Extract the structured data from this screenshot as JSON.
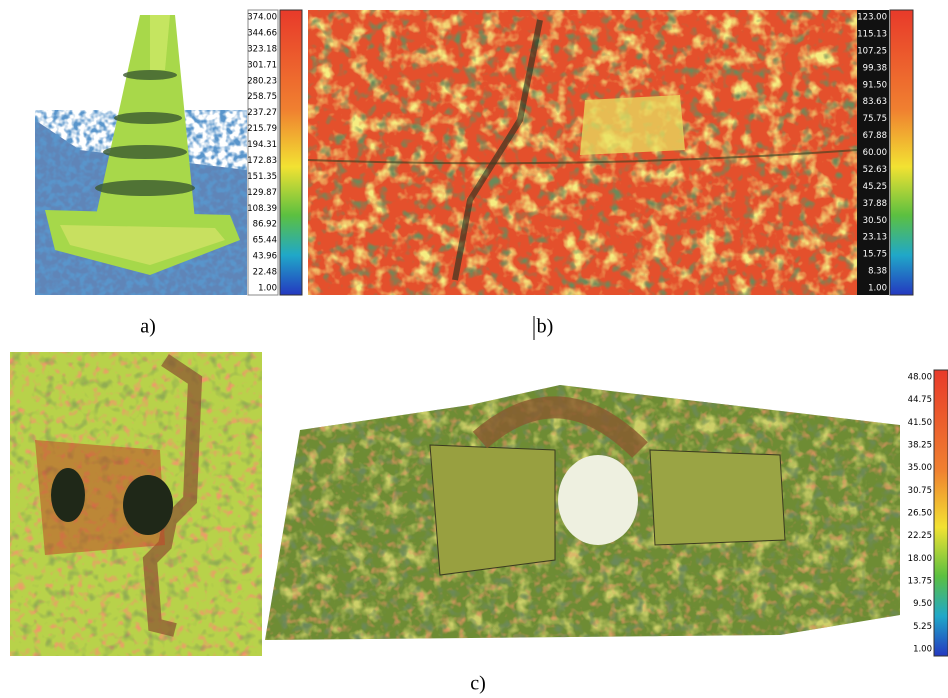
{
  "panels": [
    {
      "label": "a)",
      "colorbar": [
        "374.00",
        "344.66",
        "323.18",
        "301.71",
        "280.23",
        "258.75",
        "237.27",
        "215.79",
        "194.31",
        "172.83",
        "151.35",
        "129.87",
        "108.39",
        "86.92",
        "65.44",
        "43.96",
        "22.48",
        "1.00"
      ]
    },
    {
      "label": "b)",
      "colorbar": [
        "123.00",
        "115.13",
        "107.25",
        "99.38",
        "91.50",
        "83.63",
        "75.75",
        "67.88",
        "60.00",
        "52.63",
        "45.25",
        "37.88",
        "30.50",
        "23.13",
        "15.75",
        "8.38",
        "1.00"
      ]
    },
    {
      "label": "c)",
      "colorbar": [
        "48.00",
        "44.75",
        "41.50",
        "38.25",
        "35.00",
        "30.75",
        "26.50",
        "22.25",
        "18.00",
        "13.75",
        "9.50",
        "5.25",
        "1.00"
      ]
    }
  ]
}
